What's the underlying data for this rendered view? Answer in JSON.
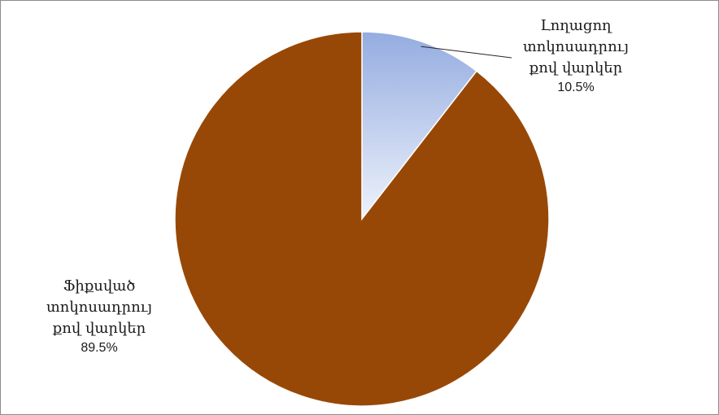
{
  "chart_data": {
    "type": "pie",
    "title": "",
    "start_angle_deg": 0,
    "direction": "clockwise",
    "slices": [
      {
        "label": "Լողացող\nտոկոսադրույ\nքով վարկեր",
        "value": 10.5,
        "value_label": "10.5%",
        "color": "#9db3e3",
        "fill": "gradient-light-blue"
      },
      {
        "label": "Ֆիքսված\nտոկոսադրույ\nքով վարկեր",
        "value": 89.5,
        "value_label": "89.5%",
        "color": "#984806"
      }
    ],
    "legend": "none",
    "data_labels": "outside-with-leader-line"
  }
}
